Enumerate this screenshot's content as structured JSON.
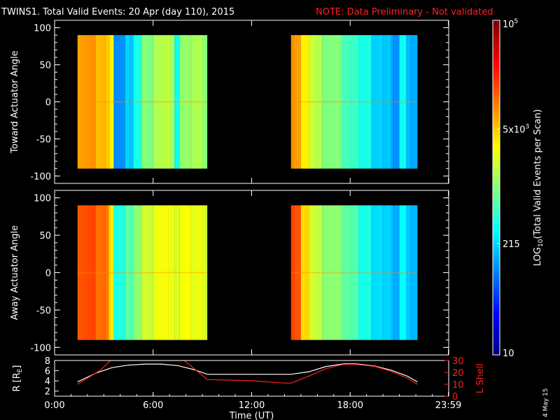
{
  "header": {
    "title": "TWINS1. Total Valid Events: 20 Apr (day 110), 2015",
    "note": "NOTE: Data Preliminary - Not validated"
  },
  "footer": {
    "date_stamp": "4 May 15"
  },
  "colors": {
    "note": "#ff2020",
    "background": "#000000",
    "r_curve": "#ffffff",
    "lshell_curve": "#ff2020"
  },
  "colorbar": {
    "label_prefix": "LOG",
    "label_sub": "10",
    "label_suffix": "(Total Valid Events per Scan)",
    "ticks": [
      {
        "value": 100000,
        "label": "10",
        "sup": "5"
      },
      {
        "value": 5000,
        "label": "5x10",
        "sup": "3"
      },
      {
        "value": 215,
        "label": "215",
        "sup": ""
      },
      {
        "value": 10,
        "label": "10",
        "sup": ""
      }
    ],
    "range": [
      10,
      100000
    ],
    "scale": "log"
  },
  "chart_data": [
    {
      "type": "heatmap",
      "ylabel": "Toward Actuator Angle",
      "ylim": [
        -110,
        110
      ],
      "yticks": [
        "100",
        "50",
        "0",
        "-50",
        "-100"
      ],
      "ytick_values": [
        100,
        50,
        0,
        -50,
        -100
      ],
      "xlim": [
        0,
        24
      ],
      "data_extent_y": [
        -90,
        90
      ],
      "blocks": [
        {
          "start": 1.4,
          "end": 9.3
        },
        {
          "start": 14.4,
          "end": 22.1
        }
      ],
      "columns": [
        {
          "t": 1.4,
          "v": 3.9
        },
        {
          "t": 2.5,
          "v": 3.75
        },
        {
          "t": 3.3,
          "v": 3.55
        },
        {
          "t": 3.6,
          "v": 2.05
        },
        {
          "t": 4.3,
          "v": 2.3
        },
        {
          "t": 4.8,
          "v": 2.6
        },
        {
          "t": 5.3,
          "v": 3.0
        },
        {
          "t": 6.0,
          "v": 3.2
        },
        {
          "t": 7.3,
          "v": 2.55
        },
        {
          "t": 7.6,
          "v": 3.1
        },
        {
          "t": 8.3,
          "v": 3.15
        },
        {
          "t": 9.0,
          "v": 3.05
        },
        {
          "t": 14.4,
          "v": 3.9
        },
        {
          "t": 15.0,
          "v": 3.55
        },
        {
          "t": 15.5,
          "v": 3.25
        },
        {
          "t": 16.3,
          "v": 3.0
        },
        {
          "t": 17.5,
          "v": 2.75
        },
        {
          "t": 18.5,
          "v": 2.6
        },
        {
          "t": 19.3,
          "v": 2.3
        },
        {
          "t": 20.5,
          "v": 2.1
        },
        {
          "t": 21.0,
          "v": 2.55
        },
        {
          "t": 21.4,
          "v": 2.2
        }
      ]
    },
    {
      "type": "heatmap",
      "ylabel": "Away Actuator Angle",
      "ylim": [
        -110,
        110
      ],
      "yticks": [
        "100",
        "50",
        "0",
        "-50",
        "-100"
      ],
      "ytick_values": [
        100,
        50,
        0,
        -50,
        -100
      ],
      "xlim": [
        0,
        24
      ],
      "data_extent_y": [
        -90,
        90
      ],
      "blocks": [
        {
          "start": 1.4,
          "end": 9.3
        },
        {
          "start": 14.4,
          "end": 22.1
        }
      ],
      "columns": [
        {
          "t": 1.4,
          "v": 4.2
        },
        {
          "t": 2.5,
          "v": 4.05
        },
        {
          "t": 3.3,
          "v": 3.6
        },
        {
          "t": 3.6,
          "v": 2.6
        },
        {
          "t": 4.3,
          "v": 2.85
        },
        {
          "t": 4.8,
          "v": 3.05
        },
        {
          "t": 5.3,
          "v": 3.3
        },
        {
          "t": 6.0,
          "v": 3.45
        },
        {
          "t": 7.3,
          "v": 3.35
        },
        {
          "t": 7.6,
          "v": 3.5
        },
        {
          "t": 8.3,
          "v": 3.4
        },
        {
          "t": 9.0,
          "v": 3.35
        },
        {
          "t": 14.4,
          "v": 4.2
        },
        {
          "t": 15.0,
          "v": 3.65
        },
        {
          "t": 15.5,
          "v": 3.3
        },
        {
          "t": 16.3,
          "v": 3.05
        },
        {
          "t": 17.5,
          "v": 2.85
        },
        {
          "t": 18.5,
          "v": 2.6
        },
        {
          "t": 19.3,
          "v": 2.35
        },
        {
          "t": 20.5,
          "v": 2.2
        },
        {
          "t": 21.0,
          "v": 2.5
        },
        {
          "t": 21.4,
          "v": 2.25
        }
      ]
    },
    {
      "type": "line",
      "ylabel_left": "R [R",
      "ylabel_left_sub": "E",
      "ylabel_left_end": "]",
      "ylabel_right": "L Shell",
      "ylim_left": [
        1,
        8
      ],
      "ylim_right": [
        0,
        30
      ],
      "yticks_left": [
        "8",
        "6",
        "4",
        "2"
      ],
      "ytick_values_left": [
        8,
        6,
        4,
        2
      ],
      "yticks_right": [
        "30",
        "20",
        "10",
        "0"
      ],
      "ytick_values_right": [
        30,
        20,
        10,
        0
      ],
      "xlim": [
        0,
        24
      ],
      "xticks": [
        "0:00",
        "6:00",
        "12:00",
        "18:00",
        "23:59"
      ],
      "xtick_values": [
        0,
        6,
        12,
        18,
        23.98
      ],
      "xlabel": "Time (UT)",
      "series": [
        {
          "axis": "left",
          "x": [
            1.4,
            2.5,
            3.5,
            4.5,
            5.5,
            6.5,
            7.5,
            8.5,
            9.3,
            14.4,
            15.5,
            16.5,
            17.5,
            18.0,
            18.5,
            19.5,
            20.5,
            21.5,
            22.1
          ],
          "y": [
            3.8,
            5.5,
            6.6,
            7.1,
            7.3,
            7.3,
            7.0,
            6.2,
            5.3,
            5.3,
            5.8,
            6.8,
            7.3,
            7.4,
            7.3,
            6.9,
            6.1,
            4.9,
            3.8
          ]
        },
        {
          "axis": "right",
          "x": [
            1.4,
            2.8,
            3.4,
            7.9,
            9.3,
            12.0,
            14.0,
            14.4,
            15.5,
            16.5,
            17.5,
            18.0,
            18.5,
            19.5,
            20.5,
            21.5,
            22.1
          ],
          "y": [
            10,
            22,
            30,
            30,
            14,
            13,
            11,
            11,
            17,
            23,
            26.5,
            27,
            26.5,
            25,
            21,
            15,
            10
          ]
        }
      ]
    }
  ]
}
